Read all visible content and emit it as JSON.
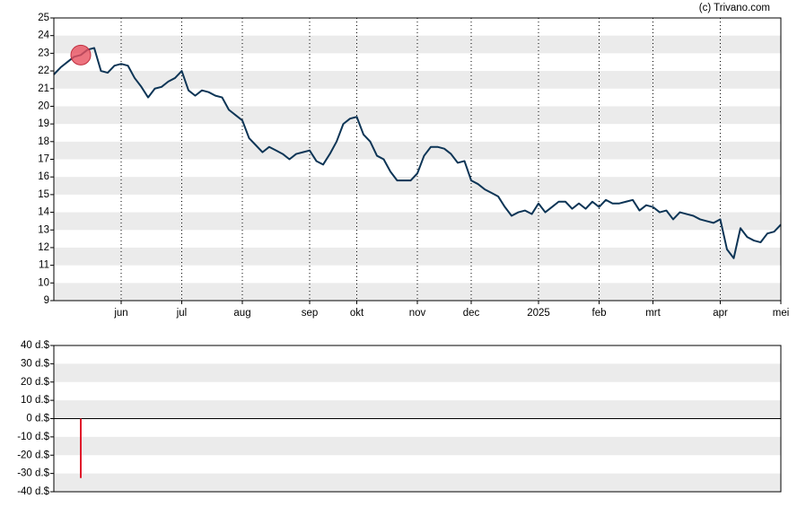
{
  "attribution": "(c) Trivano.com",
  "chart_data": [
    {
      "type": "line",
      "categories": [
        null,
        null,
        null,
        null,
        null,
        null,
        null,
        null,
        null,
        null,
        "jun",
        null,
        null,
        null,
        null,
        null,
        null,
        null,
        null,
        "jul",
        null,
        null,
        null,
        null,
        null,
        null,
        null,
        null,
        "aug",
        null,
        null,
        null,
        null,
        null,
        null,
        null,
        null,
        null,
        "sep",
        null,
        null,
        null,
        null,
        null,
        null,
        "okt",
        null,
        null,
        null,
        null,
        null,
        null,
        null,
        null,
        "nov",
        null,
        null,
        null,
        null,
        null,
        null,
        null,
        "dec",
        null,
        null,
        null,
        null,
        null,
        null,
        null,
        null,
        null,
        "2025",
        null,
        null,
        null,
        null,
        null,
        null,
        null,
        null,
        "feb",
        null,
        null,
        null,
        null,
        null,
        null,
        null,
        "mrt",
        null,
        null,
        null,
        null,
        null,
        null,
        null,
        null,
        null,
        "apr",
        null,
        null,
        null,
        null,
        null,
        null,
        null,
        null,
        "mei"
      ],
      "series": [
        {
          "color": "#0d3556",
          "values": [
            21.8,
            22.2,
            22.5,
            22.8,
            22.9,
            23.2,
            23.3,
            22.0,
            21.9,
            22.3,
            22.4,
            22.3,
            21.6,
            21.1,
            20.5,
            21.0,
            21.1,
            21.4,
            21.6,
            22.0,
            20.9,
            20.6,
            20.9,
            20.8,
            20.6,
            20.5,
            19.8,
            19.5,
            19.2,
            18.2,
            17.8,
            17.4,
            17.7,
            17.5,
            17.3,
            17.0,
            17.3,
            17.4,
            17.5,
            16.9,
            16.7,
            17.3,
            18.0,
            19.0,
            19.3,
            19.4,
            18.4,
            18.0,
            17.2,
            17.0,
            16.3,
            15.8,
            15.8,
            15.8,
            16.2,
            17.2,
            17.7,
            17.7,
            17.6,
            17.3,
            16.8,
            16.9,
            15.8,
            15.6,
            15.3,
            15.1,
            14.9,
            14.3,
            13.8,
            14.0,
            14.1,
            13.9,
            14.5,
            14.0,
            14.3,
            14.6,
            14.6,
            14.2,
            14.5,
            14.2,
            14.6,
            14.3,
            14.7,
            14.5,
            14.5,
            14.6,
            14.7,
            14.1,
            14.4,
            14.3,
            14.0,
            14.1,
            13.6,
            14.0,
            13.9,
            13.8,
            13.6,
            13.5,
            13.4,
            13.6,
            11.9,
            11.4,
            13.1,
            12.6,
            12.4,
            12.3,
            12.8,
            12.9,
            13.3
          ]
        }
      ],
      "ylim": [
        9,
        25
      ],
      "yticks": [
        9,
        10,
        11,
        12,
        13,
        14,
        15,
        16,
        17,
        18,
        19,
        20,
        21,
        22,
        23,
        24,
        25
      ],
      "grid": true,
      "marker_color": "#e8505f"
    },
    {
      "type": "bar",
      "color": "#e0192b",
      "values": [
        null,
        null,
        null,
        null,
        -32.5,
        null,
        null,
        null,
        null,
        null,
        null,
        null,
        null,
        null,
        null,
        null,
        null,
        null,
        null,
        null,
        null,
        null,
        null,
        null,
        null,
        null,
        null,
        null,
        null,
        null,
        null,
        null,
        null,
        null,
        null,
        null,
        null,
        null,
        null,
        null,
        null,
        null,
        null,
        null,
        null,
        null,
        null,
        null,
        null,
        null,
        null,
        null,
        null,
        null,
        null,
        null,
        null,
        null,
        null,
        null,
        null,
        null,
        null,
        null,
        null,
        null,
        null,
        null,
        null,
        null,
        null,
        null,
        null,
        null,
        null,
        null,
        null,
        null,
        null,
        null,
        null,
        null,
        null,
        null,
        null,
        null,
        null,
        null,
        null,
        null,
        null,
        null,
        null,
        null,
        null,
        null,
        null,
        null,
        null,
        null,
        null,
        null,
        null,
        null,
        null,
        null,
        null,
        null,
        null
      ],
      "ylim": [
        -40,
        40
      ],
      "yticks": [
        {
          "value": -40,
          "label": "-40 d.$"
        },
        {
          "value": -30,
          "label": "-30 d.$"
        },
        {
          "value": -20,
          "label": "-20 d.$"
        },
        {
          "value": -10,
          "label": "-10 d.$"
        },
        {
          "value": 0,
          "label": "0 d.$"
        },
        {
          "value": 10,
          "label": "10 d.$"
        },
        {
          "value": 20,
          "label": "20 d.$"
        },
        {
          "value": 30,
          "label": "30 d.$"
        },
        {
          "value": 40,
          "label": "40 d.$"
        }
      ],
      "grid": false
    }
  ]
}
